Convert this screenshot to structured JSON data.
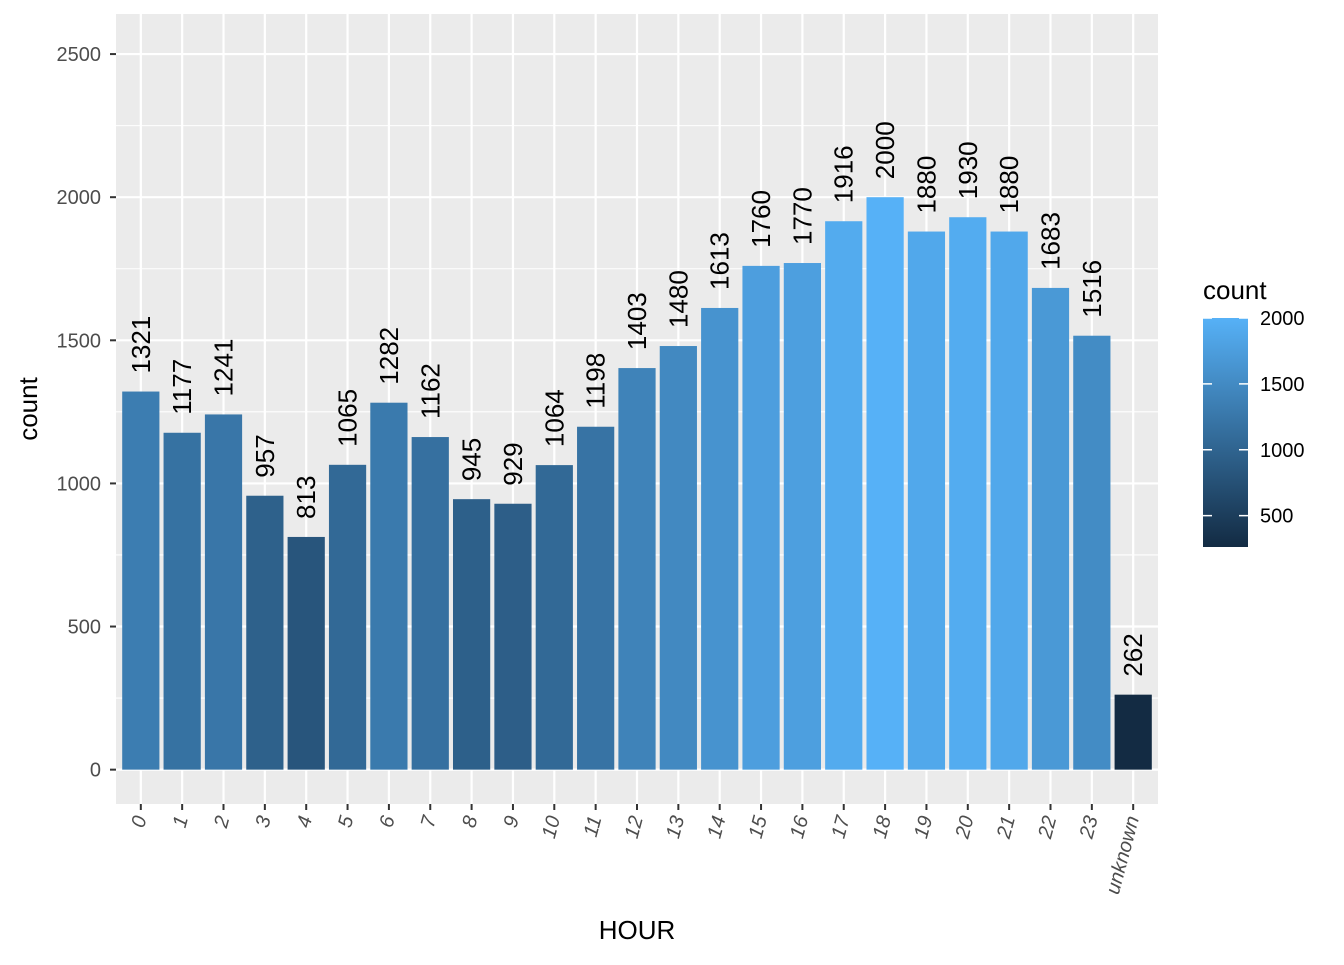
{
  "chart_data": {
    "type": "bar",
    "categories": [
      "0",
      "1",
      "2",
      "3",
      "4",
      "5",
      "6",
      "7",
      "8",
      "9",
      "10",
      "11",
      "12",
      "13",
      "14",
      "15",
      "16",
      "17",
      "18",
      "19",
      "20",
      "21",
      "22",
      "23",
      "unknown"
    ],
    "values": [
      1321,
      1177,
      1241,
      957,
      813,
      1065,
      1282,
      1162,
      945,
      929,
      1064,
      1198,
      1403,
      1480,
      1613,
      1760,
      1770,
      1916,
      2000,
      1880,
      1930,
      1880,
      1683,
      1516,
      262
    ],
    "data_labels": [
      "1321",
      "1177",
      "1241",
      "957",
      "813",
      "1065",
      "1282",
      "1162",
      "945",
      "929",
      "1064",
      "1198",
      "1403",
      "1480",
      "1613",
      "1760",
      "1770",
      "1916",
      "2000",
      "1880",
      "1930",
      "1880",
      "1683",
      "1516",
      "262"
    ],
    "xlabel": "HOUR",
    "ylabel": "count",
    "ylim": [
      -120,
      2640
    ],
    "y_ticks": [
      "0",
      "500",
      "1000",
      "1500",
      "2000",
      "2500"
    ],
    "y_tick_values": [
      0,
      500,
      1000,
      1500,
      2000,
      2500
    ],
    "grid": true,
    "legend": {
      "title": "count",
      "position": "right",
      "ticks": [
        "500",
        "1000",
        "1500",
        "2000"
      ],
      "tick_values": [
        500,
        1000,
        1500,
        2000
      ],
      "range": [
        262,
        2000
      ],
      "color_low": "#132B43",
      "color_high": "#56B1F7"
    },
    "colors": {
      "panel_background": "#EBEBEB",
      "grid_major": "#FFFFFF",
      "axis_text": "#4D4D4D"
    }
  }
}
